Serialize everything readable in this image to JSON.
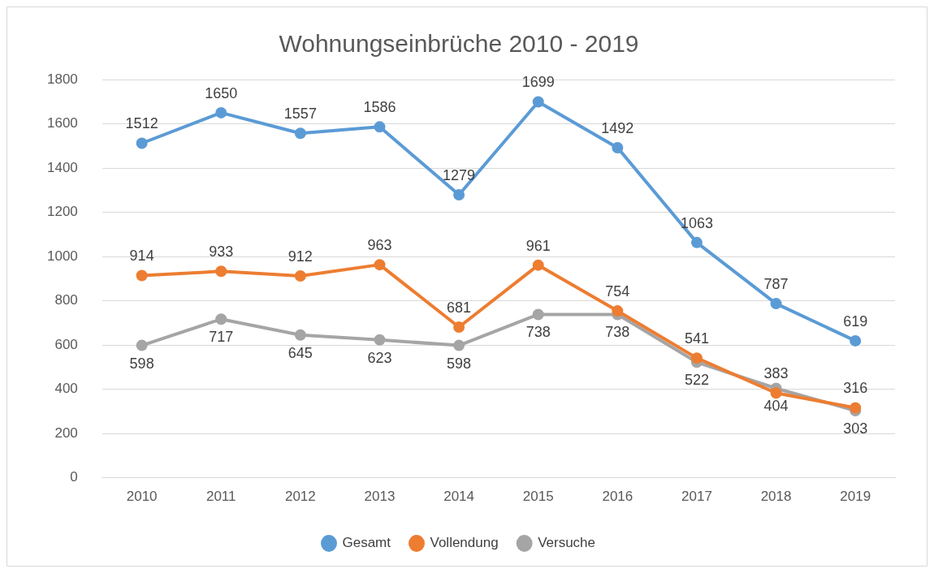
{
  "chart_data": {
    "type": "line",
    "title": "Wohnungseinbrüche 2010 - 2019",
    "categories": [
      "2010",
      "2011",
      "2012",
      "2013",
      "2014",
      "2015",
      "2016",
      "2017",
      "2018",
      "2019"
    ],
    "series": [
      {
        "name": "Gesamt",
        "color": "#5b9bd5",
        "values": [
          1512,
          1650,
          1557,
          1586,
          1279,
          1699,
          1492,
          1063,
          787,
          619
        ]
      },
      {
        "name": "Vollendung",
        "color": "#ed7d31",
        "values": [
          914,
          933,
          912,
          963,
          681,
          961,
          754,
          541,
          383,
          316
        ]
      },
      {
        "name": "Versuche",
        "color": "#a5a5a5",
        "values": [
          598,
          717,
          645,
          623,
          598,
          738,
          738,
          522,
          404,
          303
        ]
      }
    ],
    "ylim": [
      0,
      1800
    ],
    "yticks": [
      0,
      200,
      400,
      600,
      800,
      1000,
      1200,
      1400,
      1600,
      1800
    ],
    "grid": "y",
    "legend": "bottom",
    "marker": "circle",
    "line_style": "solid",
    "data_labels": true
  }
}
